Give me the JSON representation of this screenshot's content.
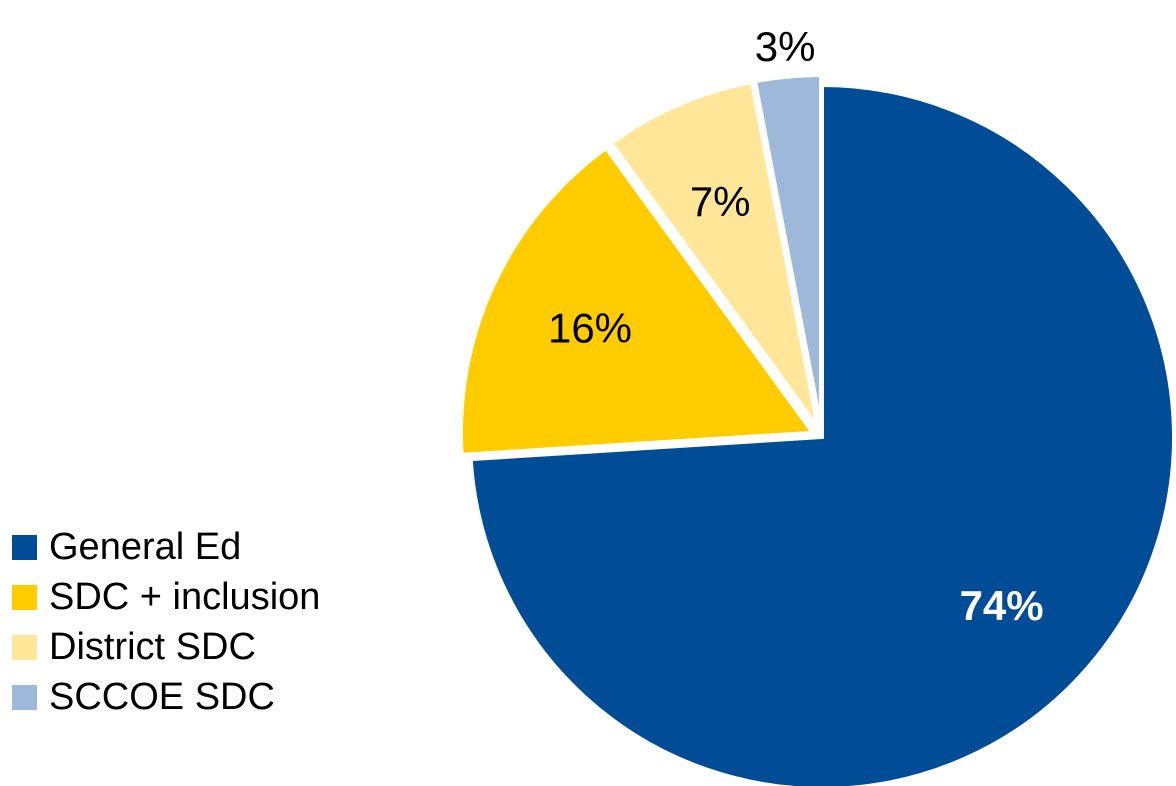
{
  "chart_data": {
    "type": "pie",
    "title": "",
    "slices": [
      {
        "label": "General Ed",
        "value": 74,
        "display": "74%",
        "color": "#004C97",
        "label_color": "#FFFFFF",
        "label_bold": true,
        "exploded": false
      },
      {
        "label": "SDC + inclusion",
        "value": 16,
        "display": "16%",
        "color": "#FFCC00",
        "label_color": "#000000",
        "label_bold": false,
        "exploded": true
      },
      {
        "label": "District SDC",
        "value": 7,
        "display": "7%",
        "color": "#FFE699",
        "label_color": "#000000",
        "label_bold": false,
        "exploded": true
      },
      {
        "label": "SCCOE SDC",
        "value": 3,
        "display": "3%",
        "color": "#9DB8D9",
        "label_color": "#000000",
        "label_bold": false,
        "exploded": true
      }
    ],
    "start_angle_deg": 0,
    "direction": "clockwise",
    "legend": {
      "placement": "bottom-left"
    }
  }
}
